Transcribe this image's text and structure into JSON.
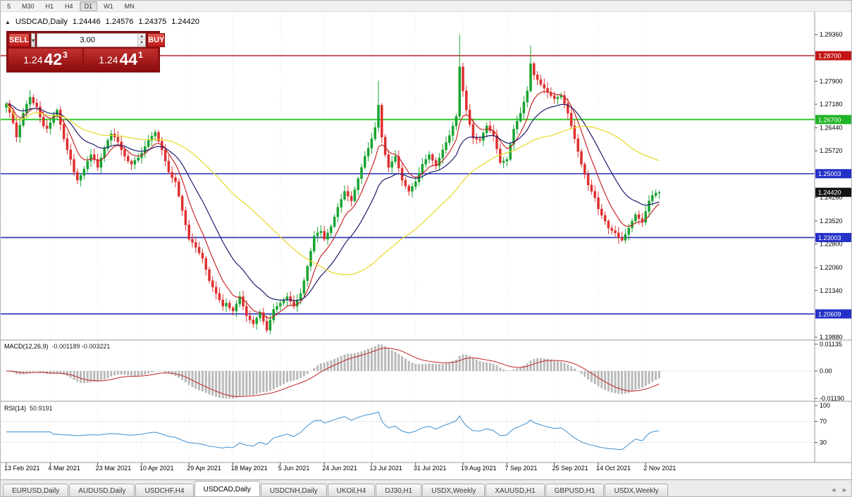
{
  "toolbar": {
    "periods": [
      {
        "label": "5",
        "active": false
      },
      {
        "label": "M30",
        "active": false
      },
      {
        "label": "H1",
        "active": false
      },
      {
        "label": "H4",
        "active": false
      },
      {
        "label": "D1",
        "active": true
      },
      {
        "label": "W1",
        "active": false
      },
      {
        "label": "MN",
        "active": false
      }
    ]
  },
  "chart_header": {
    "toggle_icon": "▲",
    "title": "USDCAD,Daily",
    "open": "1.24446",
    "high": "1.24576",
    "low": "1.24375",
    "close": "1.24420"
  },
  "trade_panel": {
    "sell_label": "SELL",
    "buy_label": "BUY",
    "volume": "3.00",
    "sell_price_main": "1.24",
    "sell_price_pips": "42",
    "sell_price_sup": "3",
    "buy_price_main": "1.24",
    "buy_price_pips": "44",
    "buy_price_sup": "1",
    "dropdown_icon": "▾",
    "spin_up_icon": "▲",
    "spin_down_icon": "▼"
  },
  "price_axis": {
    "ticks": [
      "1.29360",
      "1.27900",
      "1.27180",
      "1.26440",
      "1.25720",
      "1.24260",
      "1.23520",
      "1.22800",
      "1.22060",
      "1.21340",
      "1.19880"
    ],
    "badges": [
      {
        "label": "1.28700",
        "price": 1.287,
        "color": "#c41414"
      },
      {
        "label": "1.26700",
        "price": 1.267,
        "color": "#1fb425"
      },
      {
        "label": "1.25003",
        "price": 1.25003,
        "color": "#2431c8"
      },
      {
        "label": "1.24420",
        "price": 1.2442,
        "color": "#141414"
      },
      {
        "label": "1.23003",
        "price": 1.23003,
        "color": "#2431c8"
      },
      {
        "label": "1.20609",
        "price": 1.20609,
        "color": "#2431c8"
      }
    ]
  },
  "hlines": [
    {
      "price": 1.287,
      "color": "#bb2222",
      "width": 1.4
    },
    {
      "price": 1.267,
      "color": "#2ecc2e",
      "width": 2
    },
    {
      "price": 1.25003,
      "color": "#2433bb",
      "width": 1.6
    },
    {
      "price": 1.23003,
      "color": "#2433bb",
      "width": 1.6
    },
    {
      "price": 1.20609,
      "color": "#2433bb",
      "width": 1.6
    }
  ],
  "macd": {
    "label": "MACD(12,26,9)",
    "values": "-0.001189 -0.003221",
    "axis": [
      "0.01135",
      "0.00",
      "-0.01190"
    ]
  },
  "rsi": {
    "label": "RSI(14)",
    "value": "50.9191",
    "axis": [
      "100",
      "70",
      "30"
    ]
  },
  "date_axis": {
    "labels": [
      "13 Feb 2021",
      "4 Mar 2021",
      "23 Mar 2021",
      "10 Apr 2021",
      "29 Apr 2021",
      "18 May 2021",
      "5 Jun 2021",
      "24 Jun 2021",
      "13 Jul 2021",
      "31 Jul 2021",
      "19 Aug 2021",
      "7 Sep 2021",
      "25 Sep 2021",
      "14 Oct 2021",
      "2 Nov 2021"
    ],
    "indices": [
      0,
      13,
      27,
      40,
      54,
      67,
      81,
      94,
      108,
      121,
      135,
      148,
      162,
      175,
      189
    ]
  },
  "tabs": {
    "items": [
      {
        "label": "EURUSD,Daily",
        "active": false
      },
      {
        "label": "AUDUSD,Daily",
        "active": false
      },
      {
        "label": "USDCHF,H4",
        "active": false
      },
      {
        "label": "USDCAD,Daily",
        "active": true
      },
      {
        "label": "USDCNH,Daily",
        "active": false
      },
      {
        "label": "UKOil,H4",
        "active": false
      },
      {
        "label": "DJ30,H1",
        "active": false
      },
      {
        "label": "USDX,Weekly",
        "active": false
      },
      {
        "label": "XAUUSD,H1",
        "active": false
      },
      {
        "label": "GBPUSD,H1",
        "active": false
      },
      {
        "label": "USDX,Weekly",
        "active": false
      }
    ],
    "nav_left": "◄",
    "nav_right": "►"
  },
  "colors": {
    "grid": "#e9e9e9",
    "axis_line": "#9a9a9a",
    "axis_text": "#000000",
    "macd_hist": "#b9b9b9",
    "macd_signal": "#c22222",
    "rsi_line": "#3f8fce",
    "level_line": "#d8d8d8"
  },
  "chart_data": {
    "type": "candlestick",
    "symbol": "USDCAD",
    "timeframe": "Daily",
    "price_min": 1.1988,
    "price_max": 1.2985,
    "up_color": "#18a330",
    "down_color": "#de2f2f",
    "ma": [
      {
        "type": "ema",
        "period": 8,
        "color": "#c62828"
      },
      {
        "type": "ema",
        "period": 20,
        "color": "#1c1c6e"
      },
      {
        "type": "sma",
        "period": 50,
        "color": "#e6d822"
      }
    ],
    "closes": [
      1.272,
      1.2692,
      1.266,
      1.2615,
      1.2652,
      1.269,
      1.2718,
      1.274,
      1.2722,
      1.271,
      1.2678,
      1.265,
      1.2642,
      1.266,
      1.2685,
      1.27,
      1.2655,
      1.261,
      1.2575,
      1.2545,
      1.2505,
      1.248,
      1.2495,
      1.2515,
      1.254,
      1.256,
      1.2545,
      1.252,
      1.255,
      1.258,
      1.2605,
      1.2625,
      1.2615,
      1.26,
      1.2575,
      1.2555,
      1.254,
      1.253,
      1.2542,
      1.255,
      1.2565,
      1.2585,
      1.2605,
      1.2618,
      1.263,
      1.2602,
      1.2575,
      1.254,
      1.2505,
      1.2488,
      1.2475,
      1.243,
      1.2385,
      1.234,
      1.2295,
      1.2285,
      1.227,
      1.2252,
      1.2235,
      1.22,
      1.2165,
      1.2145,
      1.2125,
      1.2105,
      1.2085,
      1.2095,
      1.208,
      1.207,
      1.2092,
      1.2115,
      1.2085,
      1.2055,
      1.2042,
      1.203,
      1.2048,
      1.2065,
      1.2038,
      1.201,
      1.2042,
      1.2075,
      1.2085,
      1.2095,
      1.2105,
      1.2115,
      1.21,
      1.2085,
      1.2105,
      1.2125,
      1.2165,
      1.221,
      1.2258,
      1.2305,
      1.2315,
      1.232,
      1.2295,
      1.2315,
      1.2335,
      1.2365,
      1.2395,
      1.242,
      1.2445,
      1.243,
      1.2415,
      1.245,
      1.2485,
      1.252,
      1.2555,
      1.258,
      1.261,
      1.2645,
      1.2715,
      1.2615,
      1.256,
      1.252,
      1.2538,
      1.2555,
      1.2518,
      1.248,
      1.2462,
      1.2445,
      1.246,
      1.2475,
      1.2502,
      1.253,
      1.2545,
      1.256,
      1.2542,
      1.2525,
      1.255,
      1.2575,
      1.2598,
      1.262,
      1.265,
      1.268,
      1.2835,
      1.276,
      1.27,
      1.2655,
      1.2612,
      1.2608,
      1.2605,
      1.2628,
      1.265,
      1.2635,
      1.262,
      1.2578,
      1.2535,
      1.254,
      1.2545,
      1.2592,
      1.264,
      1.2665,
      1.269,
      1.2725,
      1.276,
      1.2845,
      1.281,
      1.2795,
      1.278,
      1.2768,
      1.2755,
      1.2745,
      1.2735,
      1.274,
      1.2745,
      1.272,
      1.269,
      1.265,
      1.261,
      1.257,
      1.253,
      1.2498,
      1.2465,
      1.2445,
      1.2425,
      1.239,
      1.237,
      1.2352,
      1.233,
      1.2322,
      1.2315,
      1.23,
      1.2292,
      1.231,
      1.233,
      1.2352,
      1.2372,
      1.236,
      1.2348,
      1.2382,
      1.2415,
      1.2432,
      1.244,
      1.2442
    ],
    "wick_overrides": {
      "7": {
        "high": 1.2762
      },
      "77": {
        "low": 1.2002
      },
      "110": {
        "high": 1.2792
      },
      "134": {
        "high": 1.2936
      },
      "155": {
        "high": 1.2902
      },
      "182": {
        "low": 1.2287
      }
    }
  }
}
